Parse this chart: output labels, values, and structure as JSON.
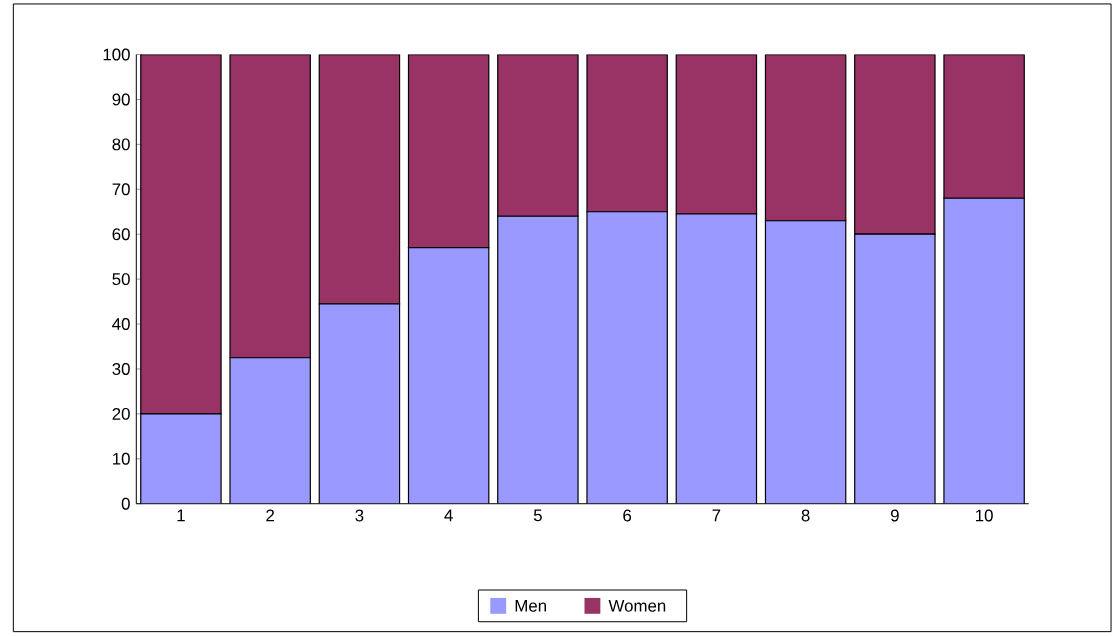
{
  "chart_data": {
    "type": "bar",
    "stacked": true,
    "categories": [
      "1",
      "2",
      "3",
      "4",
      "5",
      "6",
      "7",
      "8",
      "9",
      "10"
    ],
    "series": [
      {
        "name": "Men",
        "color": "#9999ff",
        "values": [
          20,
          32.5,
          44.5,
          57,
          64,
          65,
          64.5,
          63,
          60,
          68
        ]
      },
      {
        "name": "Women",
        "color": "#993366",
        "values": [
          80,
          67.5,
          55.5,
          43,
          36,
          35,
          35.5,
          37,
          40,
          32
        ]
      }
    ],
    "ylim": [
      0,
      100
    ],
    "yticks": [
      0,
      10,
      20,
      30,
      40,
      50,
      60,
      70,
      80,
      90,
      100
    ],
    "legend": "bottom"
  }
}
